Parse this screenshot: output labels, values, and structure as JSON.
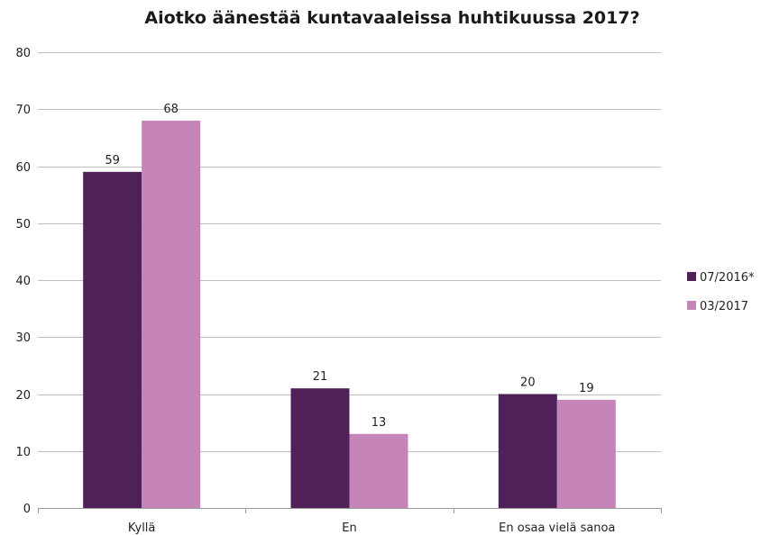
{
  "chart_data": {
    "type": "bar",
    "title": "Aiotko äänestää kuntavaaleissa huhtikuussa 2017?",
    "categories": [
      "Kyllä",
      "En",
      "En osaa vielä sanoa"
    ],
    "series": [
      {
        "name": "07/2016*",
        "values": [
          59,
          21,
          20
        ],
        "color": "#4f2158"
      },
      {
        "name": "03/2017",
        "values": [
          68,
          13,
          19
        ],
        "color": "#c585b8"
      }
    ],
    "data_labels": [
      [
        "59",
        "21",
        "20"
      ],
      [
        "68",
        "13",
        "19"
      ]
    ],
    "ylim": [
      0,
      80
    ],
    "yticks": [
      0,
      10,
      20,
      30,
      40,
      50,
      60,
      70,
      80
    ],
    "xlabel": "",
    "ylabel": "",
    "grid": true,
    "legend": "right",
    "colors": {
      "grid": "#bfbfbf",
      "axis": "#9a9a9a"
    }
  }
}
